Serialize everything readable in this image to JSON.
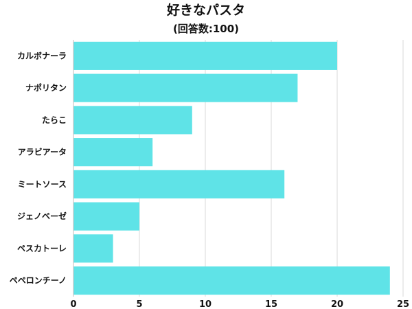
{
  "title": "好きなパスタ",
  "subtitle": "(回答数:100)",
  "colors": {
    "bar": "#5fe3e7",
    "grid": "#d9d9d9",
    "axis": "#bdbdbd",
    "text": "#111111"
  },
  "chart_data": {
    "type": "bar",
    "orientation": "horizontal",
    "categories": [
      "カルボナーラ",
      "ナポリタン",
      "たらこ",
      "アラビアータ",
      "ミートソース",
      "ジェノベーゼ",
      "ペスカトーレ",
      "ペペロンチーノ"
    ],
    "values": [
      20,
      17,
      9,
      6,
      16,
      5,
      3,
      24
    ],
    "xlim": [
      0,
      25
    ],
    "xticks": [
      0,
      5,
      10,
      15,
      20,
      25
    ],
    "grid": true,
    "legend": "none"
  }
}
